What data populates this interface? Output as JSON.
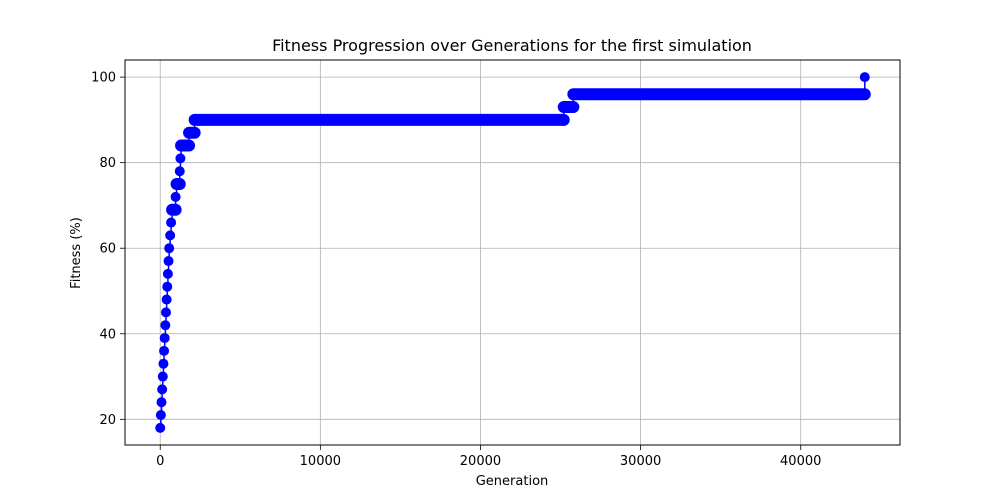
{
  "chart_data": {
    "type": "line",
    "title": "Fitness Progression over Generations for the first simulation",
    "xlabel": "Generation",
    "ylabel": "Fitness (%)",
    "xlim": [
      -2200,
      46200
    ],
    "ylim": [
      14,
      104
    ],
    "xticks": [
      0,
      10000,
      20000,
      30000,
      40000
    ],
    "yticks": [
      20,
      40,
      60,
      80,
      100
    ],
    "grid": true,
    "marker": "circle",
    "color": "#0000ff",
    "series": [
      {
        "steps": [
          {
            "from": 0,
            "to": 40,
            "y": 18
          },
          {
            "from": 40,
            "to": 80,
            "y": 21
          },
          {
            "from": 80,
            "to": 120,
            "y": 24
          },
          {
            "from": 120,
            "to": 160,
            "y": 27
          },
          {
            "from": 160,
            "to": 200,
            "y": 30
          },
          {
            "from": 200,
            "to": 240,
            "y": 33
          },
          {
            "from": 240,
            "to": 280,
            "y": 36
          },
          {
            "from": 280,
            "to": 320,
            "y": 39
          },
          {
            "from": 320,
            "to": 360,
            "y": 42
          },
          {
            "from": 360,
            "to": 400,
            "y": 45
          },
          {
            "from": 400,
            "to": 440,
            "y": 48
          },
          {
            "from": 440,
            "to": 480,
            "y": 51
          },
          {
            "from": 480,
            "to": 520,
            "y": 54
          },
          {
            "from": 520,
            "to": 560,
            "y": 57
          },
          {
            "from": 560,
            "to": 620,
            "y": 60
          },
          {
            "from": 620,
            "to": 680,
            "y": 63
          },
          {
            "from": 680,
            "to": 740,
            "y": 66
          },
          {
            "from": 740,
            "to": 960,
            "y": 69
          },
          {
            "from": 960,
            "to": 1020,
            "y": 72
          },
          {
            "from": 1020,
            "to": 1220,
            "y": 75
          },
          {
            "from": 1220,
            "to": 1260,
            "y": 78
          },
          {
            "from": 1260,
            "to": 1300,
            "y": 81
          },
          {
            "from": 1300,
            "to": 1800,
            "y": 84
          },
          {
            "from": 1800,
            "to": 2150,
            "y": 87
          },
          {
            "from": 2150,
            "to": 25200,
            "y": 90
          },
          {
            "from": 25200,
            "to": 25800,
            "y": 93
          },
          {
            "from": 25800,
            "to": 44000,
            "y": 96
          },
          {
            "from": 44000,
            "to": 44000,
            "y": 100
          }
        ]
      }
    ]
  }
}
